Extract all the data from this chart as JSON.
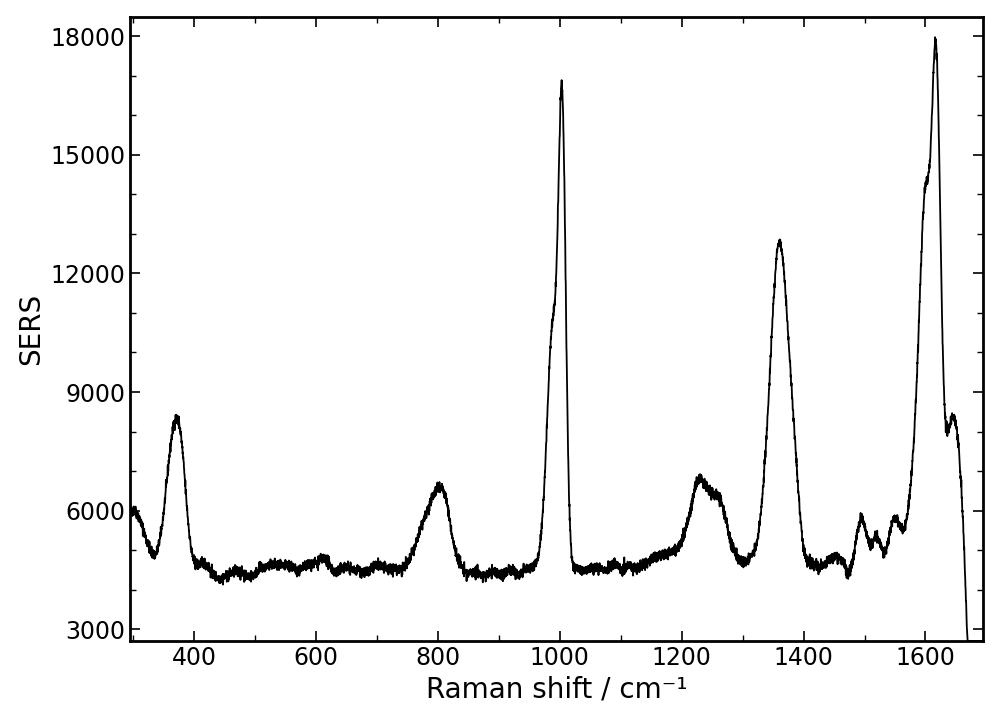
{
  "xlabel": "Raman shift / cm⁻¹",
  "ylabel": "SERS",
  "xlim": [
    295,
    1695
  ],
  "ylim": [
    2700,
    18500
  ],
  "xticks": [
    400,
    600,
    800,
    1000,
    1200,
    1400,
    1600
  ],
  "yticks": [
    3000,
    6000,
    9000,
    12000,
    15000,
    18000
  ],
  "line_color": "#000000",
  "line_width": 1.3,
  "background_color": "#ffffff",
  "xlabel_fontsize": 20,
  "ylabel_fontsize": 20,
  "tick_fontsize": 17
}
